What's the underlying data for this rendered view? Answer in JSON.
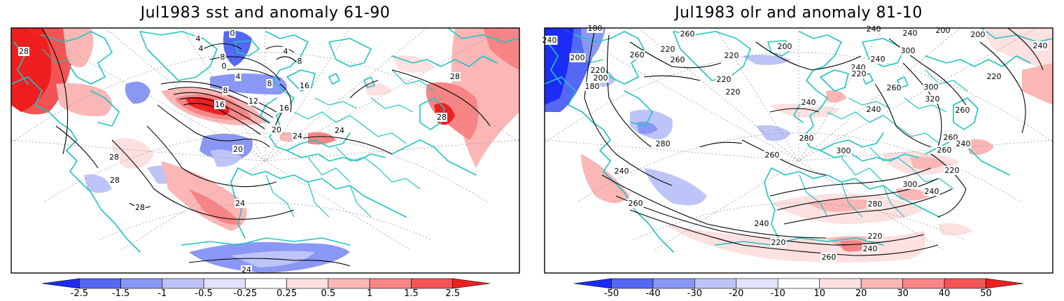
{
  "panels": [
    {
      "title": "Jul1983 sst and anomaly 61-90",
      "colorbar_ticks": [
        "-2.5",
        "-1.5",
        "-1",
        "-0.5",
        "-0.25",
        "0.25",
        "0.5",
        "1",
        "1.5",
        "2.5"
      ],
      "contour_labels": [
        "28",
        "4",
        "0",
        "4",
        "8",
        "0",
        "4",
        "8",
        "8",
        "4",
        "12",
        "16",
        "16",
        "8",
        "16",
        "20",
        "24",
        "20",
        "24",
        "28",
        "28",
        "28",
        "28",
        "24",
        "24",
        "28"
      ]
    },
    {
      "title": "Jul1983 olr and anomaly 81-10",
      "colorbar_ticks": [
        "-50",
        "-40",
        "-30",
        "-20",
        "-10",
        "10",
        "20",
        "30",
        "40",
        "50"
      ],
      "contour_labels": [
        "240",
        "180",
        "200",
        "220",
        "180",
        "200",
        "260",
        "260",
        "220",
        "260",
        "220",
        "220",
        "220",
        "200",
        "240",
        "240",
        "200",
        "200",
        "240",
        "300",
        "240",
        "220",
        "260",
        "300",
        "320",
        "260",
        "220",
        "240",
        "260",
        "240",
        "240",
        "280",
        "260",
        "280",
        "300",
        "260",
        "240",
        "220",
        "240",
        "300",
        "240",
        "280",
        "260",
        "240",
        "220",
        "240",
        "220",
        "260"
      ]
    }
  ],
  "colors": {
    "negative": [
      "#1b2cf5",
      "#5468f3",
      "#8a97f4",
      "#bdc4f7",
      "#e0e3fb"
    ],
    "positive": [
      "#fde0e0",
      "#fbb6b6",
      "#f78585",
      "#f25353",
      "#ef1f1f"
    ],
    "coastline": "#1fc3c3",
    "contour": "#000000"
  }
}
